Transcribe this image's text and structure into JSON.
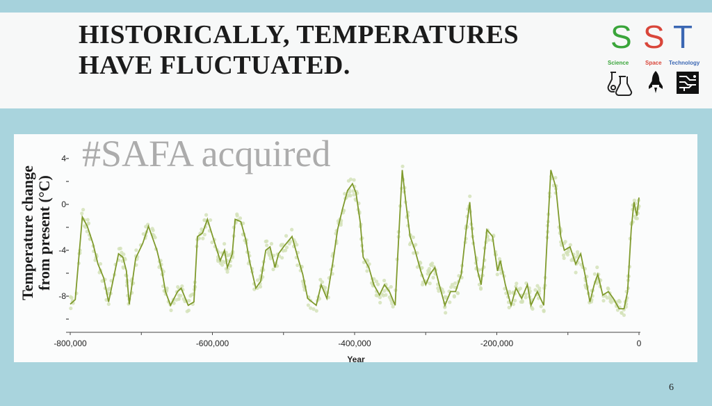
{
  "slide": {
    "title_line1": "HISTORICALLY, TEMPERATURES",
    "title_line2": "HAVE FLUCTUATED.",
    "watermark": "#SAFA acquired",
    "page_number": "6",
    "logo": {
      "letters": [
        "S",
        "S",
        "T"
      ],
      "labels": [
        "Science",
        "Space",
        "Technology"
      ],
      "colors": [
        "#3aa53a",
        "#d9463a",
        "#3b67b3"
      ]
    }
  },
  "chart_data": {
    "type": "line",
    "title": "",
    "xlabel": "Year",
    "ylabel_line1": "Temperature change",
    "ylabel_line2": "from present (°C)",
    "xlim": [
      -800000,
      0
    ],
    "ylim": [
      -10.5,
      5
    ],
    "xticks": [
      -800000,
      -600000,
      -400000,
      -200000,
      0
    ],
    "xtick_labels": [
      "-800,000",
      "-600,000",
      "-400,000",
      "-200,000",
      "0"
    ],
    "yticks": [
      4,
      0,
      -4,
      -8
    ],
    "ytick_labels": [
      "4",
      "0",
      "-4",
      "-8"
    ],
    "line_color": "#7f9a2c",
    "scatter_color": "#d3e2b8",
    "series": [
      {
        "name": "Temperature change",
        "x": [
          -800000,
          -793000,
          -783000,
          -776000,
          -768000,
          -761000,
          -753000,
          -746000,
          -732000,
          -726000,
          -721000,
          -717000,
          -708000,
          -698000,
          -690000,
          -678000,
          -671000,
          -666000,
          -659000,
          -649000,
          -644000,
          -634000,
          -626000,
          -621000,
          -614000,
          -607000,
          -595000,
          -589000,
          -583000,
          -579000,
          -572000,
          -568000,
          -560000,
          -553000,
          -548000,
          -539000,
          -532000,
          -525000,
          -519000,
          -512000,
          -507000,
          -500000,
          -488000,
          -480000,
          -473000,
          -466000,
          -454000,
          -447000,
          -439000,
          -431000,
          -424000,
          -417000,
          -410000,
          -403000,
          -398000,
          -392000,
          -388000,
          -380000,
          -373000,
          -365000,
          -358000,
          -351000,
          -343000,
          -333000,
          -328000,
          -322000,
          -315000,
          -307000,
          -300000,
          -294000,
          -287000,
          -281000,
          -273000,
          -265000,
          -258000,
          -250000,
          -243000,
          -238000,
          -234000,
          -227000,
          -222000,
          -214000,
          -206000,
          -199000,
          -195000,
          -188000,
          -180000,
          -173000,
          -165000,
          -157000,
          -152000,
          -143000,
          -134000,
          -129000,
          -124000,
          -117000,
          -110000,
          -105000,
          -97000,
          -89000,
          -82000,
          -75000,
          -69000,
          -63000,
          -58000,
          -51000,
          -43000,
          -36000,
          -28000,
          -21000,
          -16000,
          -11000,
          -7000,
          -3000,
          0
        ],
        "y": [
          -8.7,
          -8.3,
          -1.1,
          -1.9,
          -3.4,
          -5.2,
          -6.4,
          -8.5,
          -4.3,
          -4.6,
          -5.8,
          -8.7,
          -4.7,
          -3.4,
          -1.9,
          -4.0,
          -5.8,
          -7.6,
          -8.8,
          -7.6,
          -7.3,
          -8.8,
          -8.5,
          -2.8,
          -2.5,
          -1.3,
          -3.7,
          -4.9,
          -4.0,
          -5.5,
          -4.3,
          -1.3,
          -1.5,
          -3.1,
          -4.9,
          -7.3,
          -6.7,
          -4.0,
          -3.7,
          -5.5,
          -4.3,
          -3.7,
          -2.8,
          -4.6,
          -6.1,
          -8.2,
          -8.8,
          -7.0,
          -8.2,
          -5.2,
          -2.2,
          -0.4,
          1.2,
          1.8,
          1.0,
          -1.6,
          -4.6,
          -5.5,
          -7.0,
          -7.9,
          -7.0,
          -7.6,
          -8.8,
          3.0,
          0.2,
          -2.8,
          -4.0,
          -5.8,
          -7.0,
          -6.1,
          -5.5,
          -7.0,
          -8.8,
          -7.6,
          -7.6,
          -6.1,
          -2.2,
          0.2,
          -2.8,
          -5.8,
          -7.0,
          -2.2,
          -2.8,
          -5.8,
          -4.9,
          -7.0,
          -8.8,
          -7.3,
          -8.2,
          -7.0,
          -8.8,
          -7.6,
          -8.8,
          -2.8,
          3.0,
          1.5,
          -2.8,
          -4.0,
          -3.7,
          -5.2,
          -4.3,
          -6.4,
          -8.5,
          -7.0,
          -6.1,
          -7.9,
          -7.6,
          -8.2,
          -9.1,
          -9.1,
          -7.6,
          -2.2,
          0.2,
          -1.0,
          0.6
        ]
      }
    ]
  }
}
